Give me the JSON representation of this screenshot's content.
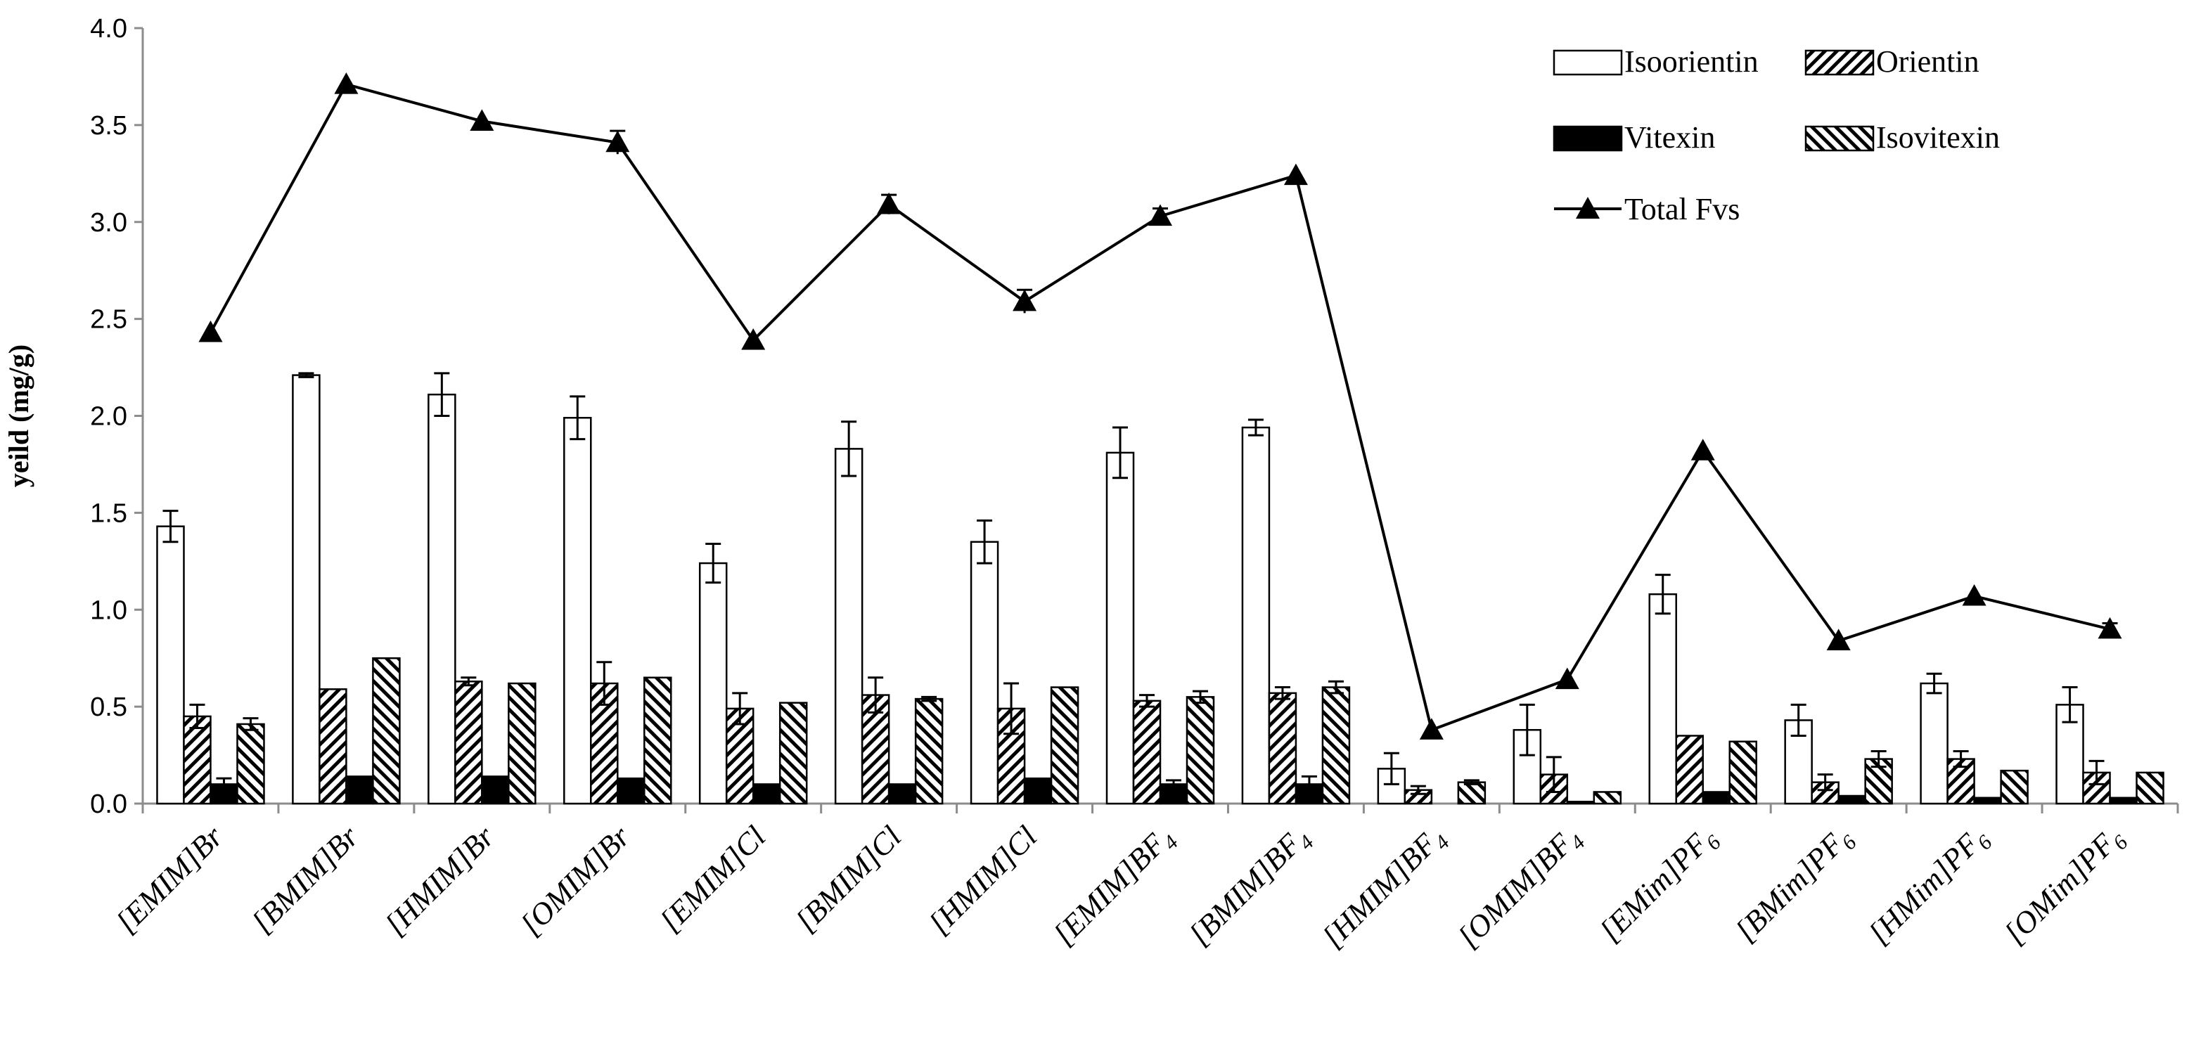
{
  "chart_data": {
    "type": "bar",
    "title": "",
    "xlabel": "",
    "ylabel": "yeild (mg/g)",
    "ylim": [
      0,
      4.0
    ],
    "ytick_step": 0.5,
    "ytick_labels": [
      "0.0",
      "0.5",
      "1.0",
      "1.5",
      "2.0",
      "2.5",
      "3.0",
      "3.5",
      "4.0"
    ],
    "legend_position": "top-right",
    "categories": [
      {
        "base": "[EMIM]",
        "anion": "Br",
        "sub": ""
      },
      {
        "base": "[BMIM]",
        "anion": "Br",
        "sub": ""
      },
      {
        "base": "[HMIM]",
        "anion": "Br",
        "sub": ""
      },
      {
        "base": "[OMIM]",
        "anion": "Br",
        "sub": ""
      },
      {
        "base": "[EMIM]",
        "anion": "Cl",
        "sub": ""
      },
      {
        "base": "[BMIM]",
        "anion": "Cl",
        "sub": ""
      },
      {
        "base": "[HMIM]",
        "anion": "Cl",
        "sub": ""
      },
      {
        "base": "[EMIM]",
        "anion": "BF",
        "sub": "4"
      },
      {
        "base": "[BMIM]",
        "anion": "BF",
        "sub": "4"
      },
      {
        "base": "[HMIM]",
        "anion": "BF",
        "sub": "4"
      },
      {
        "base": "[OMIM]",
        "anion": "BF",
        "sub": "4"
      },
      {
        "base": "[EMim]",
        "anion": "PF",
        "sub": "6"
      },
      {
        "base": "[BMim]",
        "anion": "PF",
        "sub": "6"
      },
      {
        "base": "[HMim]",
        "anion": "PF",
        "sub": "6"
      },
      {
        "base": "[OMim]",
        "anion": "PF",
        "sub": "6"
      }
    ],
    "series": [
      {
        "name": "Isoorientin",
        "kind": "bar",
        "pattern": "white",
        "values": [
          1.43,
          2.21,
          2.11,
          1.99,
          1.24,
          1.83,
          1.35,
          1.81,
          1.94,
          0.18,
          0.38,
          1.08,
          0.43,
          0.62,
          0.51
        ],
        "errors": [
          0.08,
          0.01,
          0.11,
          0.11,
          0.1,
          0.14,
          0.11,
          0.13,
          0.04,
          0.08,
          0.13,
          0.1,
          0.08,
          0.05,
          0.09
        ]
      },
      {
        "name": "Orientin",
        "kind": "bar",
        "pattern": "diag-dense",
        "values": [
          0.45,
          0.59,
          0.63,
          0.62,
          0.49,
          0.56,
          0.49,
          0.53,
          0.57,
          0.07,
          0.15,
          0.35,
          0.11,
          0.23,
          0.16
        ],
        "errors": [
          0.06,
          0.0,
          0.02,
          0.11,
          0.08,
          0.09,
          0.13,
          0.03,
          0.03,
          0.02,
          0.09,
          0.0,
          0.04,
          0.04,
          0.06
        ]
      },
      {
        "name": "Vitexin",
        "kind": "bar",
        "pattern": "black",
        "values": [
          0.1,
          0.14,
          0.14,
          0.13,
          0.1,
          0.1,
          0.13,
          0.1,
          0.1,
          0.0,
          0.01,
          0.06,
          0.04,
          0.03,
          0.03
        ],
        "errors": [
          0.03,
          0.0,
          0.0,
          0.0,
          0.0,
          0.0,
          0.0,
          0.02,
          0.04,
          0.0,
          0.0,
          0.0,
          0.0,
          0.0,
          0.0
        ]
      },
      {
        "name": "Isovitexin",
        "kind": "bar",
        "pattern": "diag-wide",
        "values": [
          0.41,
          0.75,
          0.62,
          0.65,
          0.52,
          0.54,
          0.6,
          0.55,
          0.6,
          0.11,
          0.06,
          0.32,
          0.23,
          0.17,
          0.16
        ],
        "errors": [
          0.03,
          0.0,
          0.0,
          0.0,
          0.0,
          0.01,
          0.0,
          0.03,
          0.03,
          0.01,
          0.0,
          0.0,
          0.04,
          0.0,
          0.0
        ]
      },
      {
        "name": "Total Fvs",
        "kind": "line",
        "marker": "triangle",
        "values": [
          2.43,
          3.71,
          3.52,
          3.41,
          2.39,
          3.09,
          2.59,
          3.03,
          3.24,
          0.38,
          0.64,
          1.82,
          0.84,
          1.07,
          0.9
        ],
        "errors": [
          0.0,
          0.0,
          0.0,
          0.06,
          0.0,
          0.05,
          0.06,
          0.04,
          0.0,
          0.0,
          0.0,
          0.0,
          0.0,
          0.0,
          0.03
        ]
      }
    ]
  }
}
